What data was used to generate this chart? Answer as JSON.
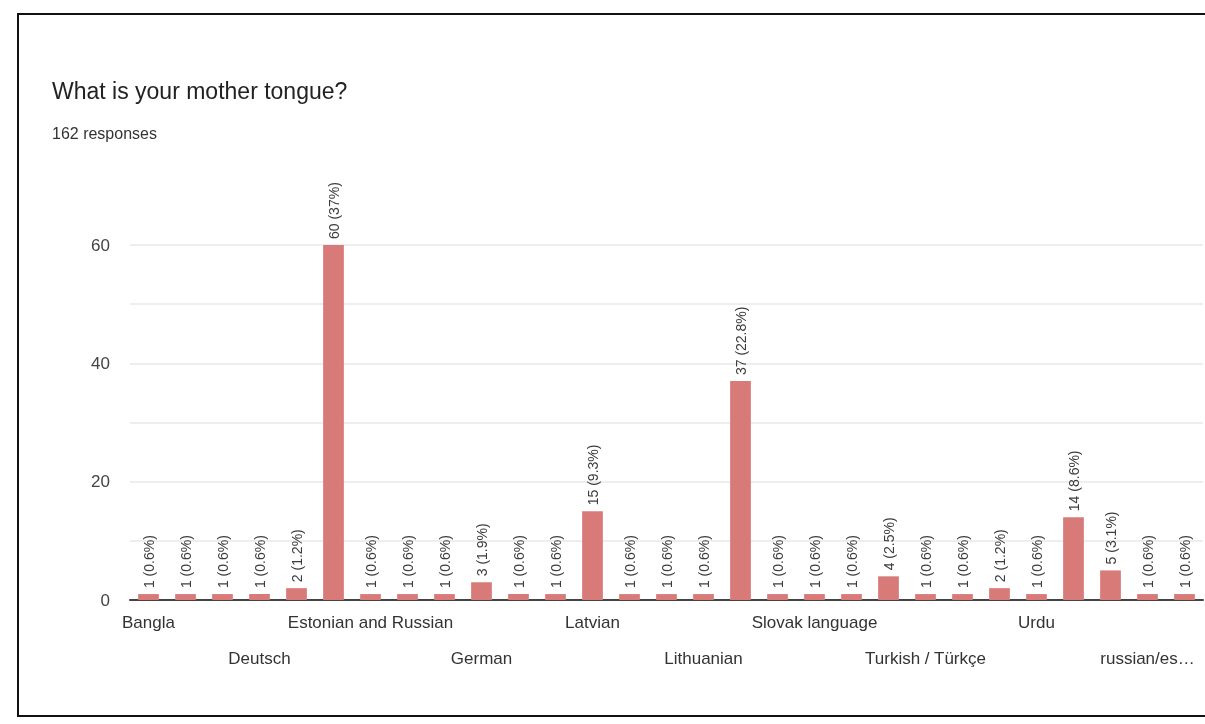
{
  "chart_data": {
    "type": "bar",
    "title": "What is your mother tongue?",
    "subtitle": "162 responses",
    "categories": [
      "Bangla",
      null,
      null,
      "Deutsch",
      null,
      null,
      "Estonian and Russian",
      null,
      null,
      "German",
      null,
      null,
      "Latvian",
      null,
      null,
      "Lithuanian",
      null,
      null,
      "Slovak language",
      null,
      null,
      "Turkish / Türkçe",
      null,
      null,
      "Urdu",
      null,
      null,
      "russian/es…",
      null
    ],
    "values": [
      1,
      1,
      1,
      1,
      2,
      60,
      1,
      1,
      1,
      3,
      1,
      1,
      15,
      1,
      1,
      1,
      37,
      1,
      1,
      1,
      4,
      1,
      1,
      2,
      1,
      14,
      5,
      1,
      1
    ],
    "value_labels": [
      "1 (0.6%)",
      "1 (0.6%)",
      "1 (0.6%)",
      "1 (0.6%)",
      "2 (1.2%)",
      "60 (37%)",
      "1 (0.6%)",
      "1 (0.6%)",
      "1 (0.6%)",
      "3 (1.9%)",
      "1 (0.6%)",
      "1 (0.6%)",
      "15 (9.3%)",
      "1 (0.6%)",
      "1 (0.6%)",
      "1 (0.6%)",
      "37 (22.8%)",
      "1 (0.6%)",
      "1 (0.6%)",
      "1 (0.6%)",
      "4 (2.5%)",
      "1 (0.6%)",
      "1 (0.6%)",
      "2 (1.2%)",
      "1 (0.6%)",
      "14 (8.6%)",
      "5 (3.1%)",
      "1 (0.6%)",
      "1 (0.6%)"
    ],
    "color": "#d77a78",
    "ylim": [
      0,
      60
    ],
    "yticks": [
      0,
      {
        "value": 10,
        "label": null
      },
      20,
      {
        "value": 30,
        "label": null
      },
      40,
      {
        "value": 50,
        "label": null
      },
      60
    ],
    "grid": "y"
  }
}
